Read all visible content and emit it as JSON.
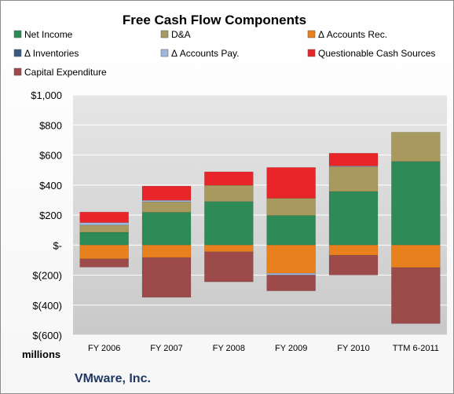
{
  "chart_data": {
    "type": "bar",
    "stacked": true,
    "title": "Free Cash Flow Components",
    "categories": [
      "FY 2006",
      "FY 2007",
      "FY 2008",
      "FY 2009",
      "FY 2010",
      "TTM 6-2011"
    ],
    "ylim": [
      -600,
      1000
    ],
    "yticks": [
      1000,
      800,
      600,
      400,
      200,
      0,
      -200,
      -400,
      -600
    ],
    "ytick_labels": [
      "$1,000",
      "$800",
      "$600",
      "$400",
      "$200",
      "$-",
      "$(200)",
      "$(400)",
      "$(600)"
    ],
    "unit_label": "millions",
    "legend_position": "top",
    "grid": true,
    "series": [
      {
        "name": "Net Income",
        "color": "#2e8b57",
        "values": [
          85,
          218,
          290,
          197,
          357,
          557
        ]
      },
      {
        "name": "D&A",
        "color": "#a89a5f",
        "values": [
          48,
          70,
          108,
          115,
          165,
          195
        ]
      },
      {
        "name": "Δ Accounts Rec.",
        "color": "#e8801e",
        "values": [
          -92,
          -83,
          -45,
          -188,
          -68,
          -150
        ]
      },
      {
        "name": "Δ Inventories",
        "color": "#3a5a80",
        "values": [
          0,
          0,
          0,
          0,
          0,
          0
        ]
      },
      {
        "name": "Δ Accounts Pay.",
        "color": "#9db8dc",
        "values": [
          17,
          10,
          0,
          -12,
          5,
          0
        ]
      },
      {
        "name": "Questionable Cash Sources",
        "color": "#e8262a",
        "values": [
          70,
          95,
          90,
          205,
          85,
          0
        ]
      },
      {
        "name": "Capital Expenditure",
        "color": "#9c4a4a",
        "values": [
          -55,
          -265,
          -200,
          -105,
          -132,
          -373
        ]
      }
    ]
  },
  "footer": {
    "company": "VMware, Inc."
  }
}
